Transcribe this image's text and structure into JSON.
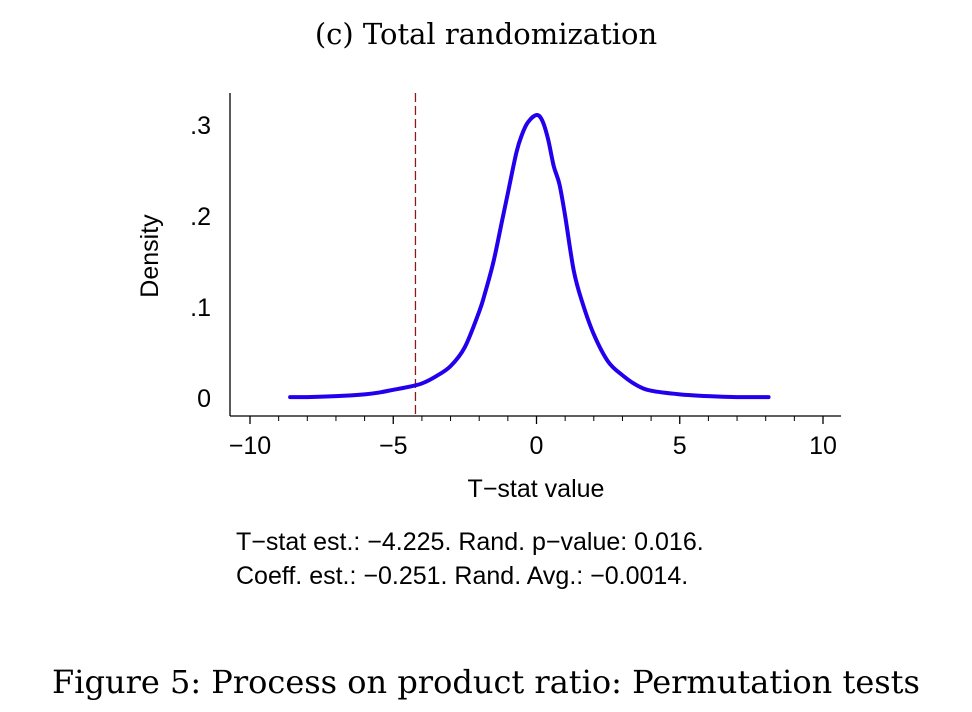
{
  "chart_data": {
    "type": "line",
    "subtitle": "(c) Total randomization",
    "xlabel": "T−stat value",
    "ylabel": "Density",
    "xlim": [
      -10,
      10
    ],
    "ylim": [
      0,
      0.33
    ],
    "x_ticks": [
      -10,
      -5,
      0,
      5,
      10
    ],
    "x_tick_labels": [
      "−10",
      "−5",
      "0",
      "5",
      "10"
    ],
    "y_ticks": [
      0,
      0.1,
      0.2,
      0.3
    ],
    "y_tick_labels": [
      "0",
      ".1",
      ".2",
      ".3"
    ],
    "grid": false,
    "series": [
      {
        "name": "Density",
        "color": "#2200ee",
        "x": [
          -8.6,
          -8.0,
          -7.0,
          -6.0,
          -5.5,
          -5.0,
          -4.5,
          -4.0,
          -3.5,
          -3.0,
          -2.5,
          -2.0,
          -1.8,
          -1.5,
          -1.2,
          -1.0,
          -0.7,
          -0.5,
          -0.3,
          0.0,
          0.2,
          0.4,
          0.6,
          0.8,
          1.0,
          1.3,
          1.6,
          2.0,
          2.5,
          3.0,
          3.5,
          4.0,
          5.0,
          6.0,
          7.0,
          8.1
        ],
        "y": [
          0.001,
          0.001,
          0.002,
          0.004,
          0.006,
          0.009,
          0.012,
          0.016,
          0.024,
          0.035,
          0.056,
          0.095,
          0.115,
          0.15,
          0.195,
          0.225,
          0.27,
          0.29,
          0.303,
          0.311,
          0.305,
          0.285,
          0.255,
          0.235,
          0.2,
          0.14,
          0.105,
          0.07,
          0.04,
          0.025,
          0.014,
          0.008,
          0.004,
          0.002,
          0.001,
          0.001
        ]
      }
    ],
    "reference_line": {
      "x": -4.225,
      "color": "#8b1a1a",
      "style": "dashed"
    }
  },
  "annotations": {
    "line1": "T−stat est.: −4.225. Rand. p−value: 0.016.",
    "line2": "Coeff. est.: −0.251. Rand. Avg.: −0.0014."
  },
  "caption": "Figure 5: Process on product ratio: Permutation tests"
}
